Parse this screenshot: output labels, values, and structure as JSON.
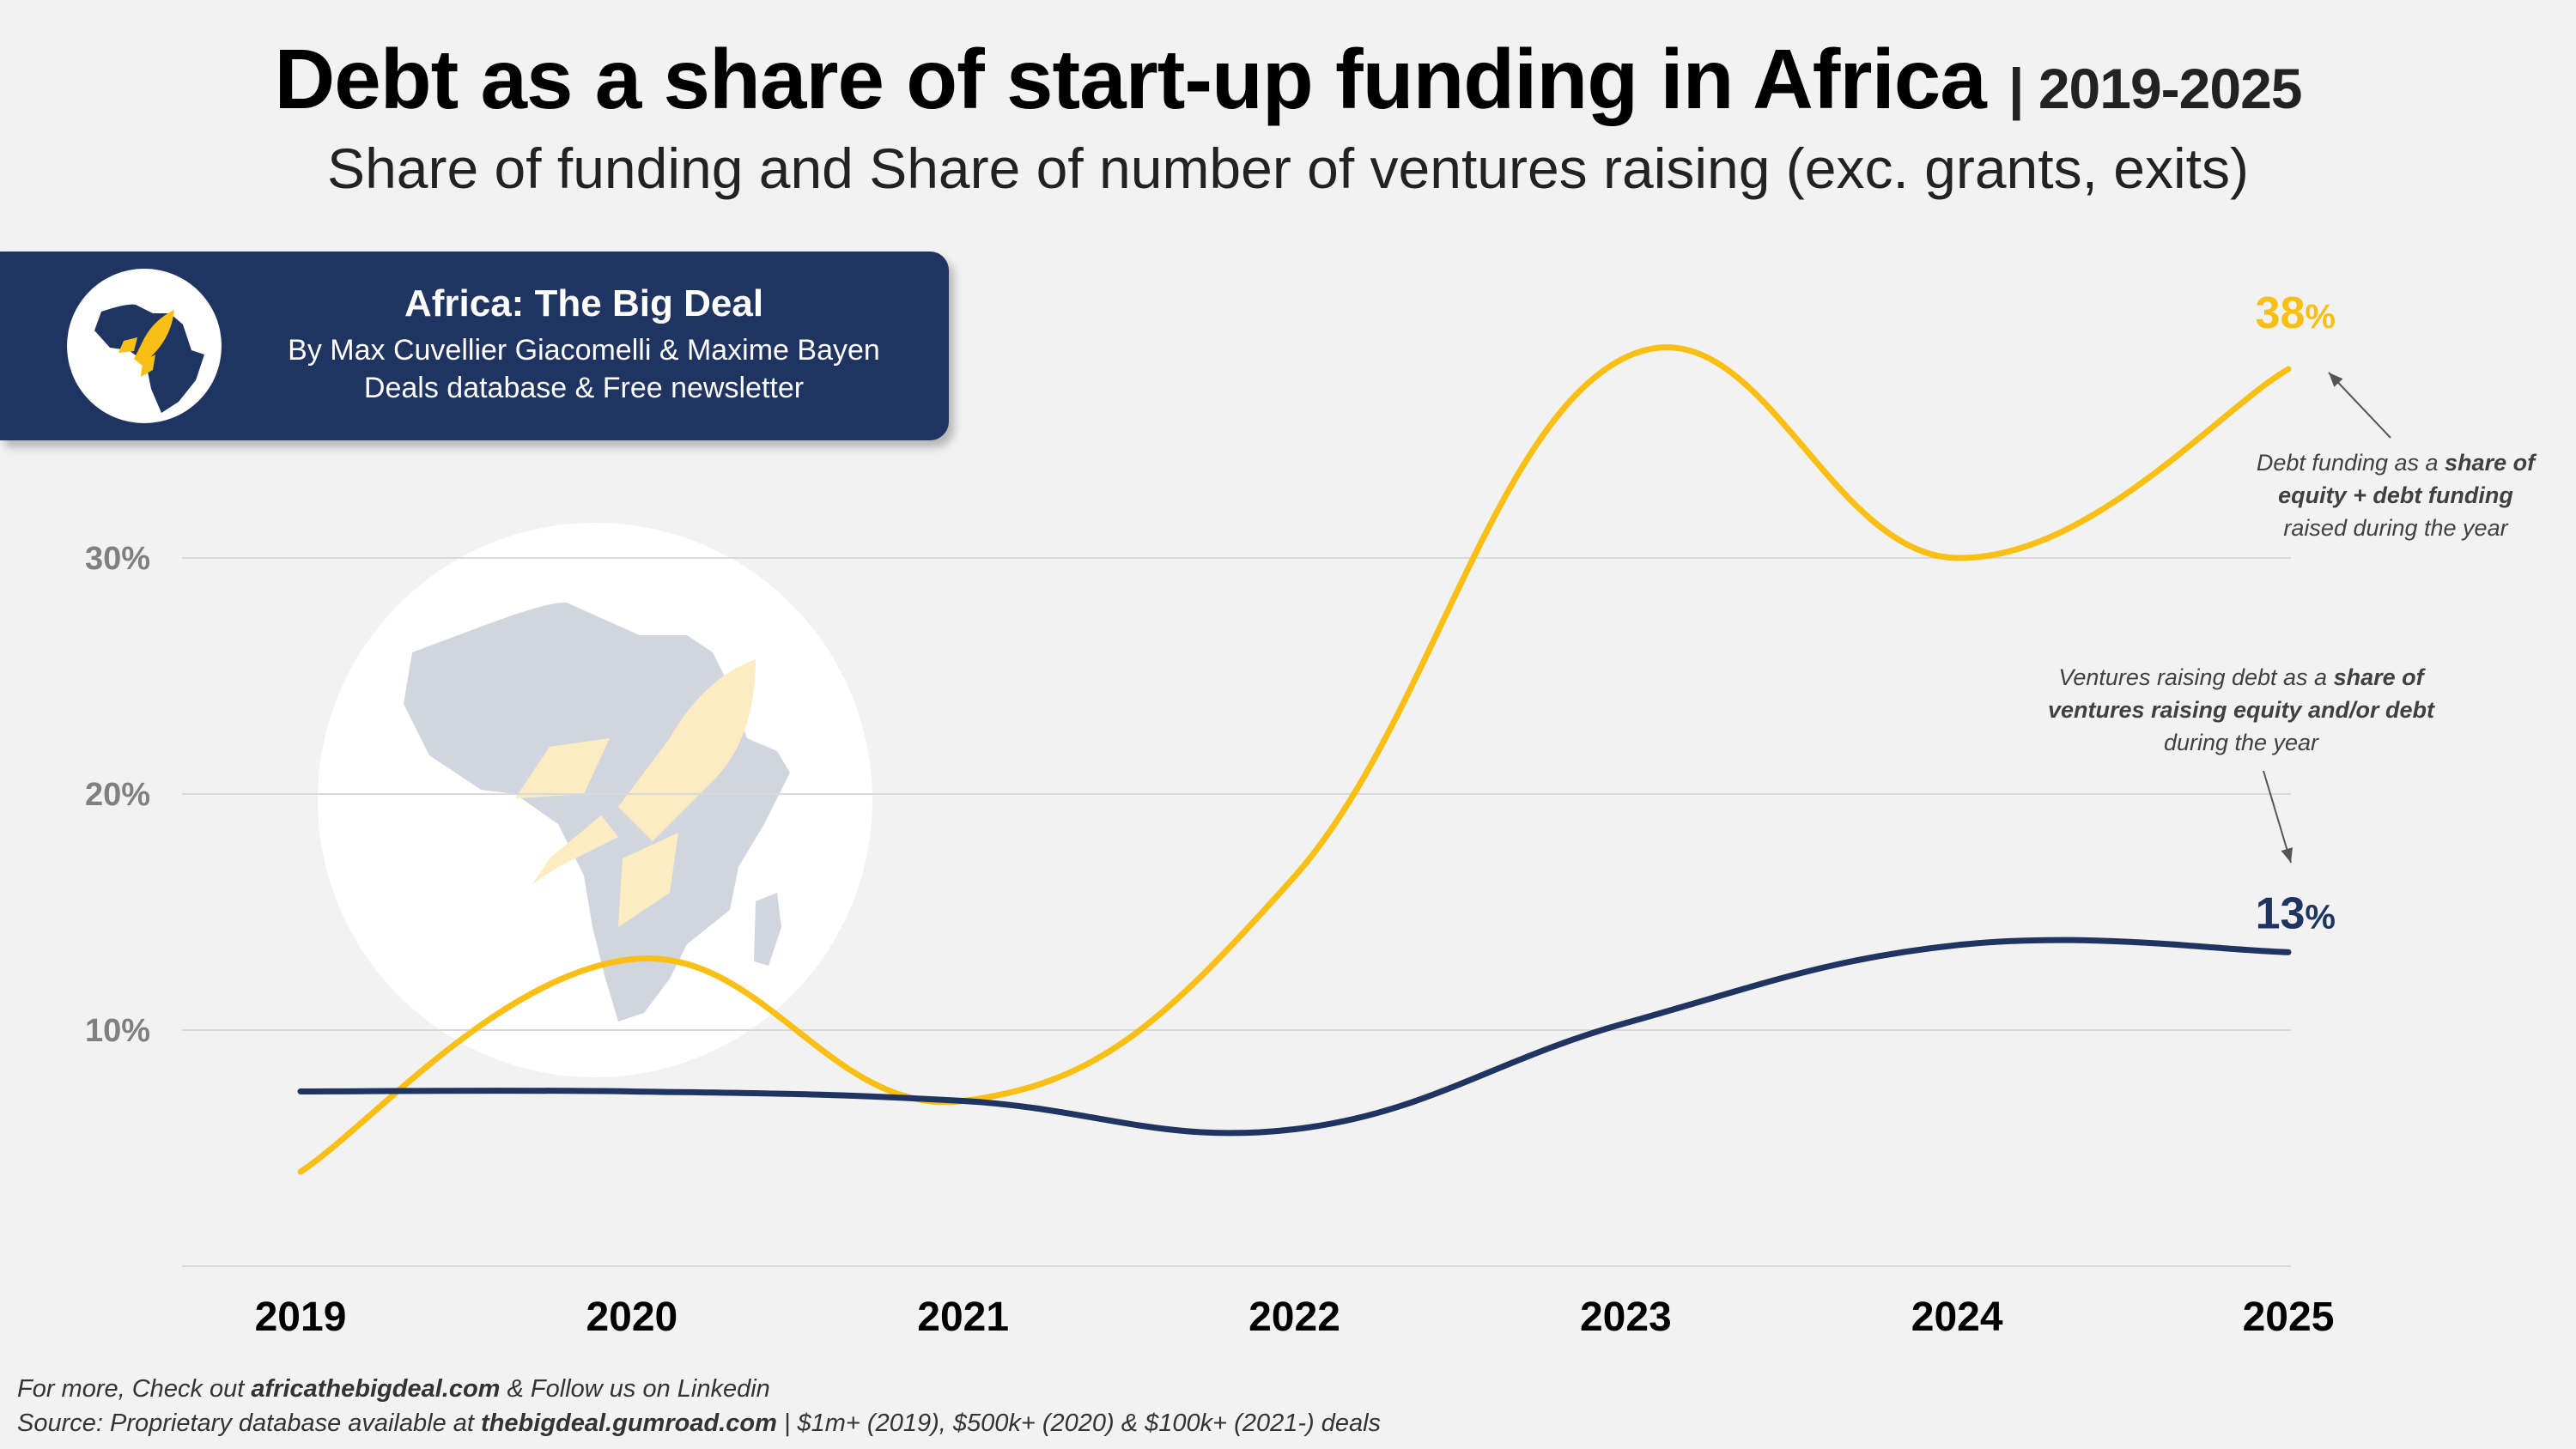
{
  "header": {
    "title": "Debt as a share of start-up funding in Africa",
    "title_years": "| 2019-2025",
    "subtitle": "Share of funding and Share of number of ventures raising (exc. grants, exits)"
  },
  "brand": {
    "name": "Africa: The Big Deal",
    "authors": "By Max Cuvellier Giacomelli & Maxime Bayen",
    "tagline": "Deals database & Free newsletter",
    "logo_icon": "africa-rocket-logo-icon"
  },
  "colors": {
    "debt_funding": "#f9bf14",
    "ventures": "#1f3460",
    "brand_bg": "#1f3460",
    "gridline": "#d9d9d9",
    "axis_tick": "#808080"
  },
  "chart_data": {
    "type": "line",
    "title": "Debt as a share of start-up funding in Africa",
    "xlabel": "",
    "ylabel": "",
    "categories": [
      "2019",
      "2020",
      "2021",
      "2022",
      "2023",
      "2024",
      "2025"
    ],
    "ylim": [
      0,
      40
    ],
    "yticks": [
      10,
      20,
      30
    ],
    "ytick_labels": [
      "10%",
      "20%",
      "30%"
    ],
    "grid": true,
    "series": [
      {
        "name": "Debt funding as a share of equity + debt funding raised during the year",
        "color": "#f9bf14",
        "values": [
          4,
          13,
          7,
          16.5,
          38.5,
          30,
          38
        ],
        "end_label_value": "38",
        "end_label_unit": "%"
      },
      {
        "name": "Ventures raising debt as a share of ventures raising equity and/or debt during the year",
        "color": "#1f3460",
        "values": [
          7.4,
          7.4,
          7,
          5.8,
          10.3,
          13.6,
          13.3
        ],
        "end_label_value": "13",
        "end_label_unit": "%"
      }
    ],
    "annotations": [
      {
        "target_series": 0,
        "lines": [
          [
            {
              "t": "Debt funding as a ",
              "b": false
            },
            {
              "t": "share of",
              "b": true
            }
          ],
          [
            {
              "t": "equity + debt funding",
              "b": true
            }
          ],
          [
            {
              "t": "raised during the year",
              "b": false
            }
          ]
        ]
      },
      {
        "target_series": 1,
        "lines": [
          [
            {
              "t": "Ventures raising debt as a ",
              "b": false
            },
            {
              "t": "share of",
              "b": true
            }
          ],
          [
            {
              "t": "ventures raising equity and/or debt",
              "b": true
            }
          ],
          [
            {
              "t": "during the year",
              "b": false
            }
          ]
        ]
      }
    ]
  },
  "footer": {
    "line1_prefix": "For more, Check out ",
    "line1_link": "africathebigdeal.com",
    "line1_suffix": " & Follow us on Linkedin",
    "line2_prefix": "Source: Proprietary database available at ",
    "line2_link": "thebigdeal.gumroad.com",
    "line2_suffix": " | $1m+ (2019), $500k+ (2020) & $100k+ (2021-) deals"
  }
}
